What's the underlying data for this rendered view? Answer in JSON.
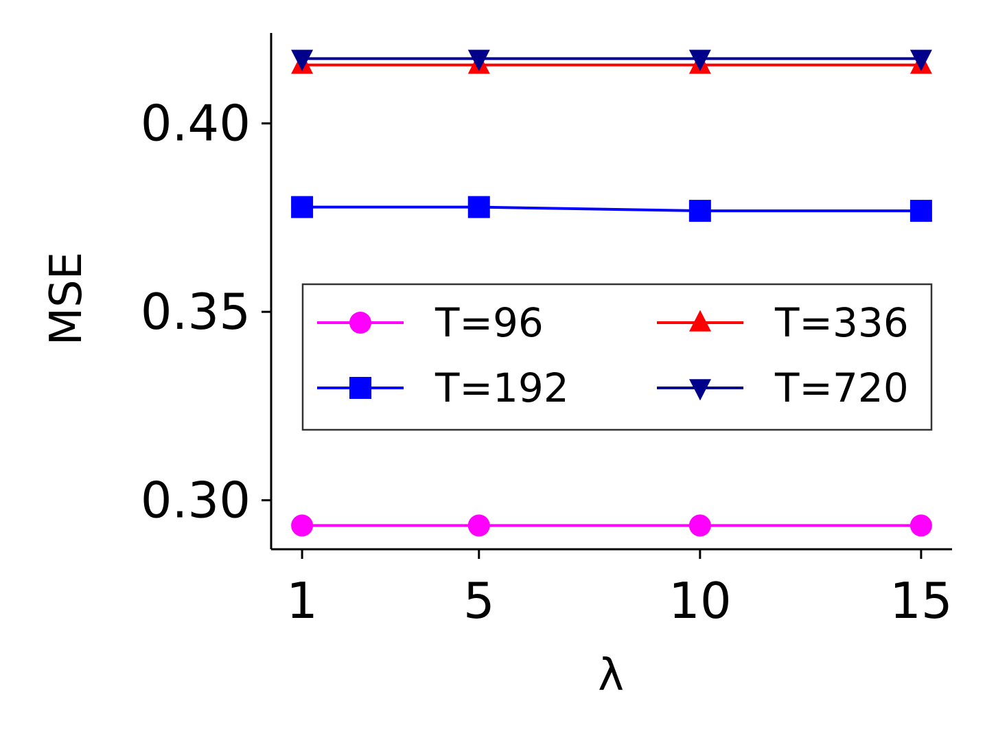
{
  "chart_data": {
    "type": "line",
    "xlabel": "λ",
    "ylabel": "MSE",
    "x": [
      1,
      5,
      10,
      15
    ],
    "x_ticks": [
      "1",
      "5",
      "10",
      "15"
    ],
    "y_ticks": [
      "0.30",
      "0.35",
      "0.40"
    ],
    "y_tick_values": [
      0.3,
      0.35,
      0.4
    ],
    "xlim": [
      0.3,
      15.7
    ],
    "ylim": [
      0.287,
      0.424
    ],
    "grid": false,
    "legend_position": "center-right",
    "legend_columns": 2,
    "series": [
      {
        "name": "T=96",
        "color": "#ff00ff",
        "marker": "circle",
        "values": [
          0.2933,
          0.2933,
          0.2933,
          0.2933
        ]
      },
      {
        "name": "T=192",
        "color": "#0000ff",
        "marker": "square",
        "values": [
          0.3778,
          0.3778,
          0.3768,
          0.3768
        ]
      },
      {
        "name": "T=336",
        "color": "#ff0000",
        "marker": "triangle-up",
        "values": [
          0.4155,
          0.4155,
          0.4155,
          0.4155
        ]
      },
      {
        "name": "T=720",
        "color": "#00008b",
        "marker": "triangle-down",
        "values": [
          0.4172,
          0.4172,
          0.4172,
          0.4172
        ]
      }
    ]
  }
}
